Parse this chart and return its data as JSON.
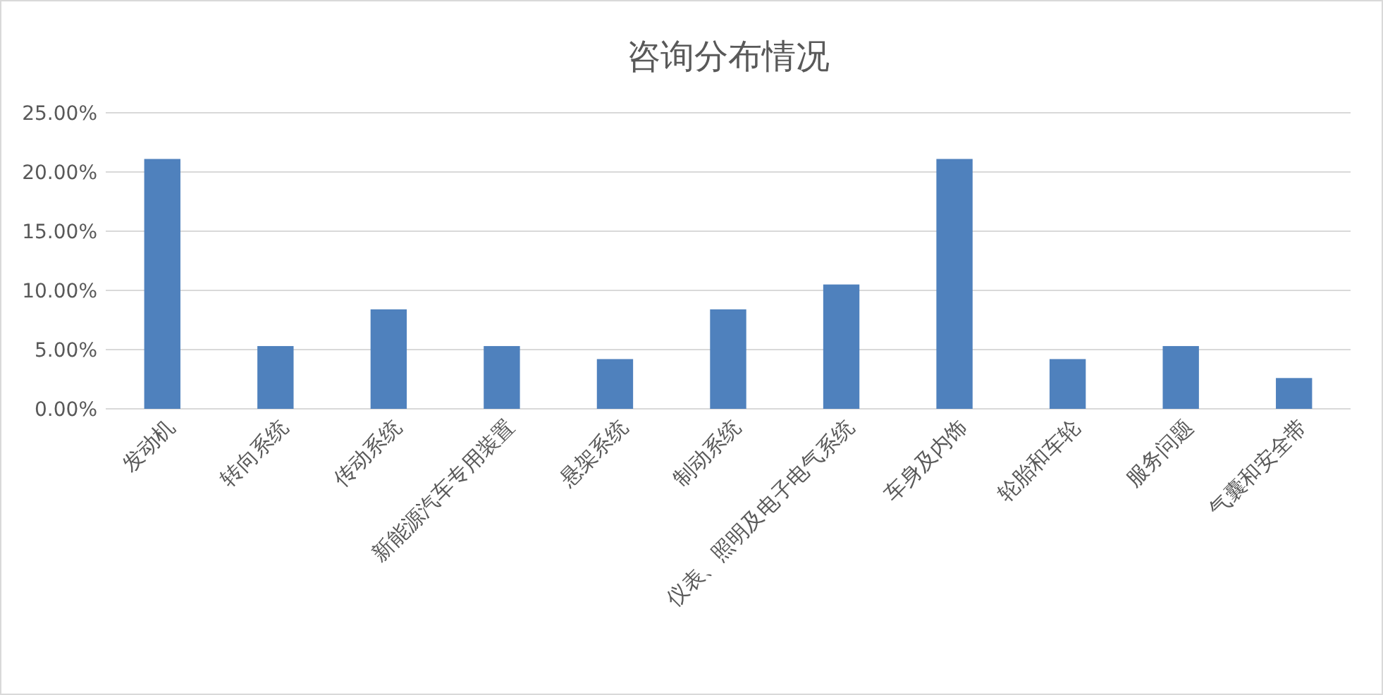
{
  "chart_data": {
    "type": "bar",
    "title": "咨询分布情况",
    "categories": [
      "发动机",
      "转向系统",
      "传动系统",
      "新能源汽车专用装置",
      "悬架系统",
      "制动系统",
      "仪表、照明及电子电气系统",
      "车身及内饰",
      "轮胎和车轮",
      "服务问题",
      "气囊和安全带"
    ],
    "values": [
      21.1,
      5.3,
      8.4,
      5.3,
      4.2,
      8.4,
      10.5,
      21.1,
      4.2,
      5.3,
      2.6
    ],
    "color": "#4f81bd",
    "ylim": [
      0,
      25
    ],
    "yticks": [
      {
        "value": 0,
        "label": "0.00%"
      },
      {
        "value": 5,
        "label": "5.00%"
      },
      {
        "value": 10,
        "label": "10.00%"
      },
      {
        "value": 15,
        "label": "15.00%"
      },
      {
        "value": 20,
        "label": "20.00%"
      },
      {
        "value": 25,
        "label": "25.00%"
      }
    ],
    "grid": "y"
  }
}
